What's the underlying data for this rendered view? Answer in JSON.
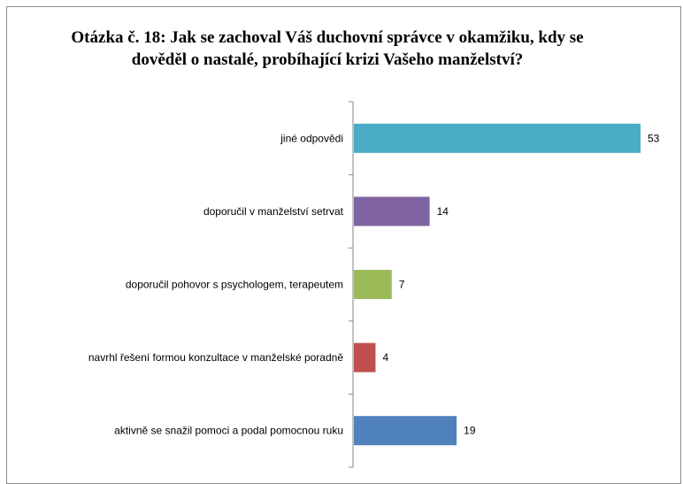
{
  "chart_data": {
    "type": "bar",
    "orientation": "horizontal",
    "title_lines": [
      "Otázka č. 18: Jak se zachoval Váš duchovní správce v okamžiku, kdy se",
      "dověděl o nastalé, probíhající krizi Vašeho manželství?"
    ],
    "categories": [
      "jiné odpovědi",
      "doporučil v manželství setrvat",
      "doporučil pohovor s psychologem, terapeutem",
      "navrhl řešení formou konzultace v manželské poradně",
      "aktivně se snažil pomoci a podal pomocnou ruku"
    ],
    "values": [
      53,
      14,
      7,
      4,
      19
    ],
    "data_labels": [
      "53",
      "14",
      "7",
      "4",
      "19"
    ],
    "colors": [
      "#4bacc6",
      "#8064a2",
      "#9bbb59",
      "#c0504d",
      "#4f81bd"
    ],
    "xlim": [
      0,
      53
    ],
    "grid": false,
    "legend": "none"
  }
}
